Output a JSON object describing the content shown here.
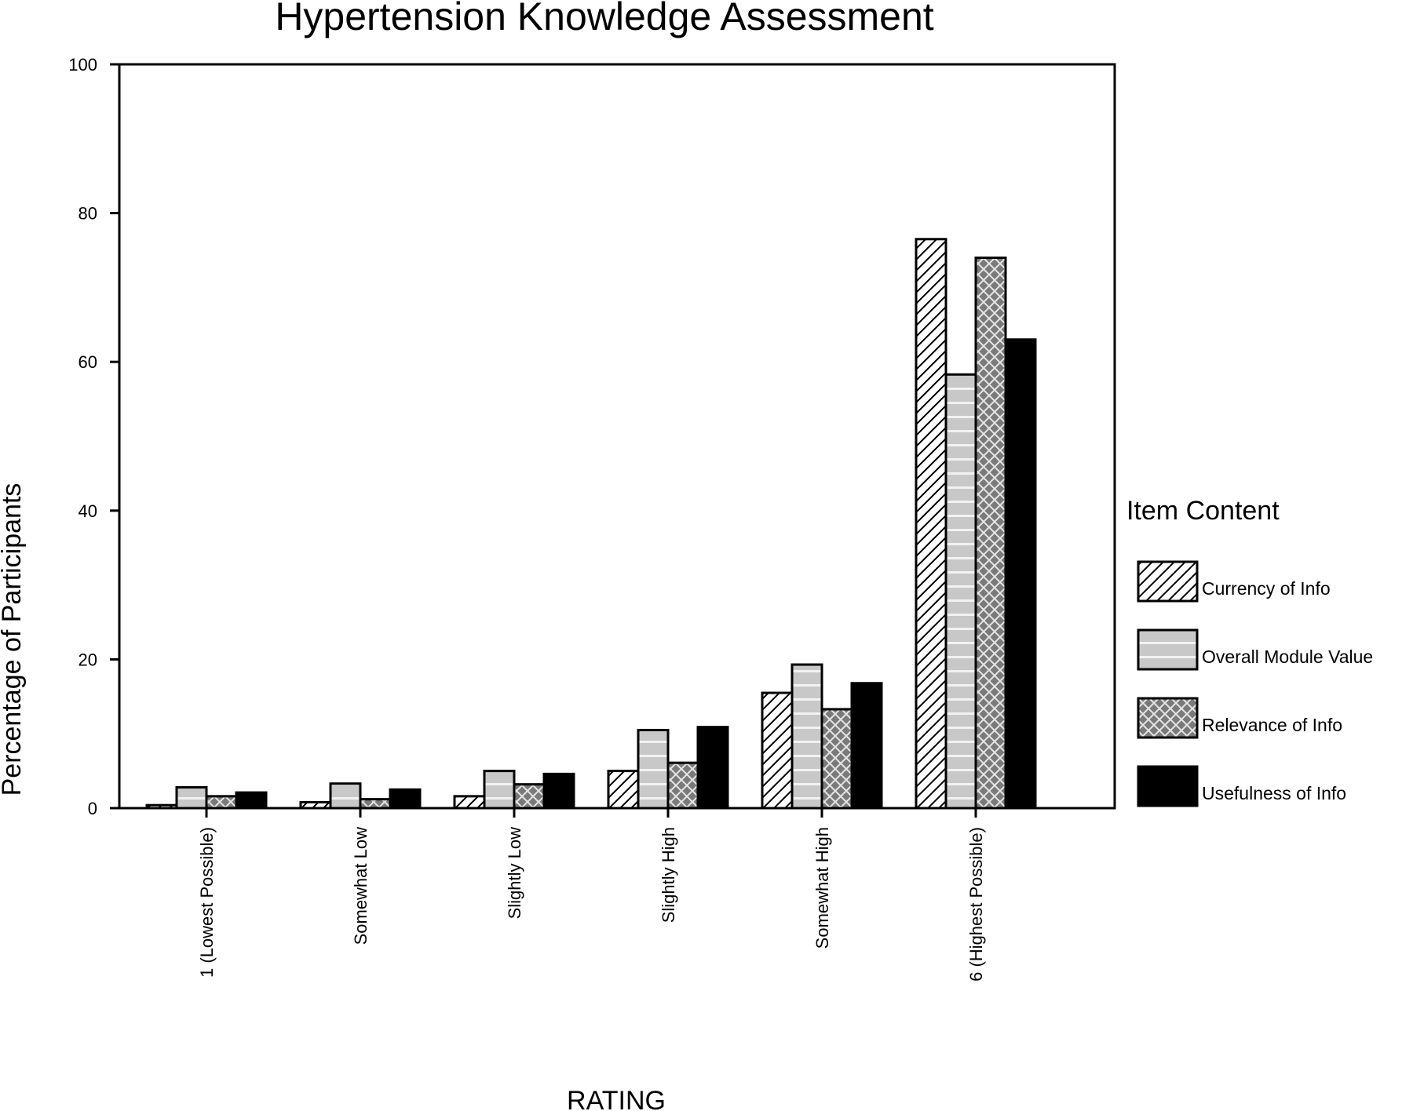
{
  "chart_data": {
    "type": "bar",
    "title": "Hypertension Knowledge Assessment",
    "xlabel": "RATING",
    "ylabel": "Percentage of Participants",
    "ylim": [
      0,
      100
    ],
    "yticks": [
      0,
      20,
      40,
      60,
      80,
      100
    ],
    "grid": false,
    "legend_title": "Item Content",
    "legend_position": "right",
    "categories": [
      "1 (Lowest Possible)",
      "Somewhat Low",
      "Slightly Low",
      "Slightly High",
      "Somewhat High",
      "6 (Highest Possible)"
    ],
    "series": [
      {
        "name": "Currency of Info",
        "pattern": "diagonal-hatch",
        "color": "#ffffff",
        "values": [
          0.4,
          0.8,
          1.6,
          5.0,
          15.5,
          76.5
        ]
      },
      {
        "name": "Overall Module Value",
        "pattern": "horizontal-lines",
        "color": "#c8c8c8",
        "values": [
          2.8,
          3.3,
          5.0,
          10.5,
          19.3,
          58.3
        ]
      },
      {
        "name": "Relevance of Info",
        "pattern": "crosshatch",
        "color": "#7a7a7a",
        "values": [
          1.6,
          1.2,
          3.2,
          6.1,
          13.3,
          74.0
        ]
      },
      {
        "name": "Usefulness of Info",
        "pattern": "solid",
        "color": "#000000",
        "values": [
          2.1,
          2.5,
          4.6,
          10.9,
          16.8,
          63.0
        ]
      }
    ]
  }
}
